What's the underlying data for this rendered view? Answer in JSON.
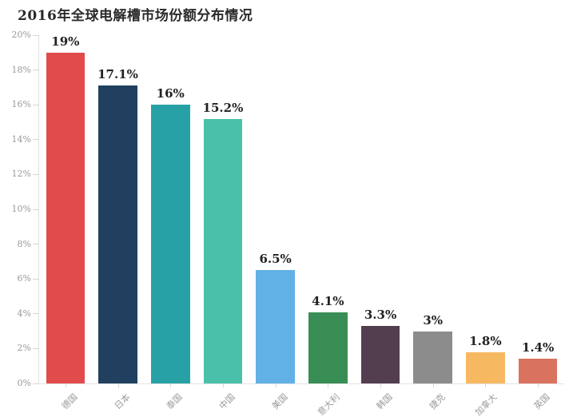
{
  "title": "2016年全球电解槽市场份额分布情况",
  "chart_data": {
    "type": "bar",
    "title": "2016年全球电解槽市场份额分布情况",
    "categories": [
      "德国",
      "日本",
      "泰国",
      "中国",
      "美国",
      "意大利",
      "韩国",
      "捷克",
      "加拿大",
      "英国"
    ],
    "values": [
      19,
      17.1,
      16,
      15.2,
      6.5,
      4.1,
      3.3,
      3,
      1.8,
      1.4
    ],
    "value_labels": [
      "19%",
      "17.1%",
      "16%",
      "15.2%",
      "6.5%",
      "4.1%",
      "3.3%",
      "3%",
      "1.8%",
      "1.4%"
    ],
    "bar_colors": [
      "#e24b4b",
      "#21405f",
      "#28a1a6",
      "#4ac0ab",
      "#61b1e6",
      "#398e55",
      "#533e50",
      "#8c8c8c",
      "#f6b961",
      "#da7260"
    ],
    "xlabel": "",
    "ylabel": "",
    "ylim": [
      0,
      20
    ],
    "y_ticks": [
      {
        "value": 0,
        "label": "0%"
      },
      {
        "value": 2,
        "label": "2%"
      },
      {
        "value": 4,
        "label": "4%"
      },
      {
        "value": 6,
        "label": "6%"
      },
      {
        "value": 8,
        "label": "8%"
      },
      {
        "value": 10,
        "label": "10%"
      },
      {
        "value": 12,
        "label": "12%"
      },
      {
        "value": 14,
        "label": "14%"
      },
      {
        "value": 16,
        "label": "16%"
      },
      {
        "value": 18,
        "label": "18%"
      },
      {
        "value": 20,
        "label": "20%"
      }
    ],
    "grid": false,
    "legend": "none",
    "x_label_rotation_deg": -45
  },
  "colors": {
    "background": "#ffffff",
    "title_text": "#2a2a2a",
    "value_label_text": "#222222",
    "axis_line": "#e2e2e2",
    "tick_mark": "#d6d6d6",
    "y_axis_label_text": "#999999",
    "x_axis_label_text": "#9b9b9b"
  }
}
